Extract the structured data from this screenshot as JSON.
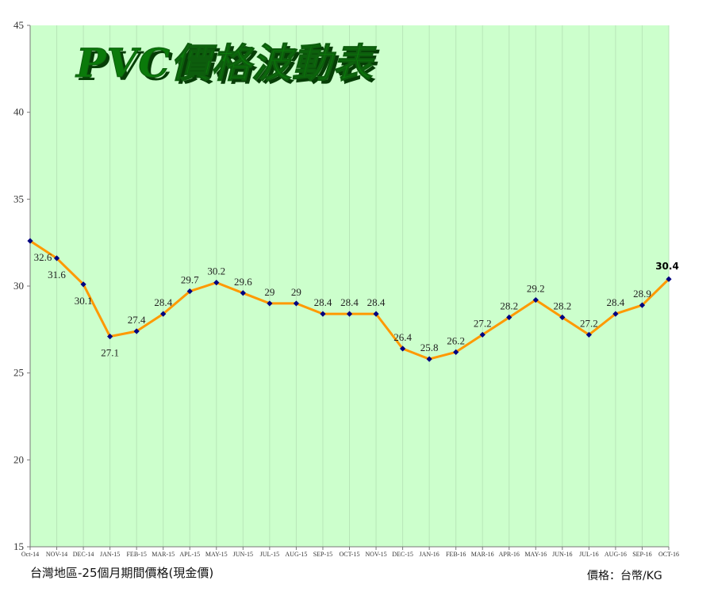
{
  "chart_data": {
    "type": "line",
    "title": "PVC價格波動表",
    "categories": [
      "Oct-14",
      "NOV-14",
      "DEC-14",
      "JAN-15",
      "FEB-15",
      "MAR-15",
      "APL-15",
      "MAY-15",
      "JUN-15",
      "JUL-15",
      "AUG-15",
      "SEP-15",
      "OCT-15",
      "NOV-15",
      "DEC-15",
      "JAN-16",
      "FEB-16",
      "MAR-16",
      "APR-16",
      "MAY-16",
      "JUN-16",
      "JUL-16",
      "AUG-16",
      "SEP-16",
      "OCT-16"
    ],
    "series": [
      {
        "values": [
          32.6,
          31.6,
          30.1,
          27.1,
          27.4,
          28.4,
          29.7,
          30.2,
          29.6,
          29,
          29,
          28.4,
          28.4,
          28.4,
          26.4,
          25.8,
          26.2,
          27.2,
          28.2,
          29.2,
          28.2,
          27.2,
          28.4,
          28.9,
          30.4
        ]
      }
    ],
    "data_labels": [
      "32.6",
      "31.6",
      "30.1",
      "27.1",
      "27.4",
      "28.4",
      "29.7",
      "30.2",
      "29.6",
      "29",
      "29",
      "28.4",
      "28.4",
      "28.4",
      "26.4",
      "25.8",
      "26.2",
      "27.2",
      "28.2",
      "29.2",
      "28.2",
      "27.2",
      "28.4",
      "28.9",
      "30.4"
    ],
    "ylim": [
      15,
      45
    ],
    "yticks": [
      "15",
      "20",
      "25",
      "30",
      "35",
      "40",
      "45"
    ],
    "xlabel": "",
    "ylabel": "",
    "grid": true,
    "colors": {
      "plot_background": "#ccffcc",
      "line": "#ff9900",
      "marker": "#000080",
      "title_fill": "#0a7a0a",
      "title_shadow": "#063d06",
      "grid": "#b8e6b8"
    }
  },
  "footer": {
    "left": "台灣地區-25個月期間價格(現金價)",
    "right": "價格：台幣/KG"
  }
}
